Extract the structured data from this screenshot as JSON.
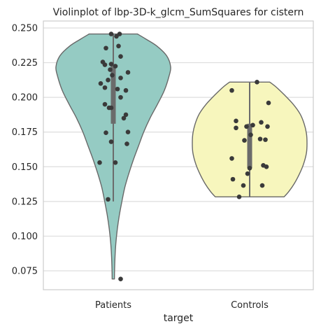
{
  "chart_data": {
    "type": "violin",
    "title": "Violinplot of lbp-3D-k_glcm_SumSquares for cistern",
    "xlabel": "target",
    "ylabel": "",
    "categories": [
      "Patients",
      "Controls"
    ],
    "ylim": [
      0.06,
      0.255
    ],
    "yticks": [
      0.075,
      0.1,
      0.125,
      0.15,
      0.175,
      0.2,
      0.225,
      0.25
    ],
    "ytick_labels": [
      "0.075",
      "0.100",
      "0.125",
      "0.150",
      "0.175",
      "0.200",
      "0.225",
      "0.250"
    ],
    "grid": true,
    "colors": {
      "Patients": "#95cbc3",
      "Controls": "#f7f6bd",
      "outline": "#686868",
      "points": "#3a3a3a",
      "box": "#6b6b6b"
    },
    "violins": [
      {
        "category": "Patients",
        "profile": [
          [
            0.0691,
            0.02
          ],
          [
            0.075,
            0.022
          ],
          [
            0.085,
            0.03
          ],
          [
            0.095,
            0.045
          ],
          [
            0.105,
            0.07
          ],
          [
            0.115,
            0.105
          ],
          [
            0.125,
            0.15
          ],
          [
            0.135,
            0.2
          ],
          [
            0.145,
            0.27
          ],
          [
            0.155,
            0.35
          ],
          [
            0.165,
            0.44
          ],
          [
            0.175,
            0.53
          ],
          [
            0.185,
            0.64
          ],
          [
            0.195,
            0.77
          ],
          [
            0.205,
            0.89
          ],
          [
            0.215,
            0.97
          ],
          [
            0.222,
            1.0
          ],
          [
            0.23,
            0.93
          ],
          [
            0.237,
            0.76
          ],
          [
            0.242,
            0.57
          ],
          [
            0.2457,
            0.42
          ]
        ],
        "box": {
          "q1": 0.181,
          "q3": 0.224,
          "whisker_low": 0.125,
          "whisker_high": 0.2457
        },
        "points": [
          [
            -0.02,
            0.2457
          ],
          [
            0.06,
            0.2457
          ],
          [
            0.03,
            0.244
          ],
          [
            0.05,
            0.237
          ],
          [
            -0.07,
            0.2355
          ],
          [
            0.07,
            0.2295
          ],
          [
            -0.1,
            0.2255
          ],
          [
            -0.08,
            0.2235
          ],
          [
            -0.02,
            0.224
          ],
          [
            0.02,
            0.2225
          ],
          [
            -0.03,
            0.22
          ],
          [
            0.14,
            0.218
          ],
          [
            -0.01,
            0.216
          ],
          [
            0.07,
            0.214
          ],
          [
            -0.05,
            0.2125
          ],
          [
            -0.12,
            0.21
          ],
          [
            -0.08,
            0.207
          ],
          [
            0.04,
            0.206
          ],
          [
            0.12,
            0.205
          ],
          [
            0.07,
            0.2
          ],
          [
            -0.08,
            0.195
          ],
          [
            -0.04,
            0.1925
          ],
          [
            -0.02,
            0.1925
          ],
          [
            0.12,
            0.1875
          ],
          [
            0.1,
            0.185
          ],
          [
            -0.07,
            0.1745
          ],
          [
            0.14,
            0.175
          ],
          [
            -0.02,
            0.168
          ],
          [
            0.13,
            0.1665
          ],
          [
            -0.13,
            0.153
          ],
          [
            0.02,
            0.153
          ],
          [
            -0.05,
            0.1265
          ],
          [
            0.07,
            0.0691
          ]
        ]
      },
      {
        "category": "Controls",
        "profile": [
          [
            0.1283,
            0.6
          ],
          [
            0.132,
            0.68
          ],
          [
            0.138,
            0.78
          ],
          [
            0.145,
            0.87
          ],
          [
            0.152,
            0.94
          ],
          [
            0.16,
            0.99
          ],
          [
            0.167,
            1.0
          ],
          [
            0.174,
            0.99
          ],
          [
            0.181,
            0.95
          ],
          [
            0.188,
            0.88
          ],
          [
            0.195,
            0.76
          ],
          [
            0.202,
            0.6
          ],
          [
            0.2075,
            0.46
          ],
          [
            0.211,
            0.35
          ]
        ],
        "box": {
          "q1": 0.149,
          "q3": 0.181,
          "whisker_low": 0.1283,
          "whisker_high": 0.211
        },
        "points": [
          [
            0.07,
            0.211
          ],
          [
            -0.17,
            0.205
          ],
          [
            0.18,
            0.196
          ],
          [
            -0.13,
            0.183
          ],
          [
            0.11,
            0.182
          ],
          [
            0.03,
            0.18
          ],
          [
            0.17,
            0.179
          ],
          [
            -0.03,
            0.179
          ],
          [
            -0.13,
            0.178
          ],
          [
            0.01,
            0.173
          ],
          [
            0.1,
            0.17
          ],
          [
            0.15,
            0.1695
          ],
          [
            -0.05,
            0.169
          ],
          [
            -0.17,
            0.156
          ],
          [
            0.13,
            0.151
          ],
          [
            0.16,
            0.15
          ],
          [
            0.0,
            0.149
          ],
          [
            -0.02,
            0.145
          ],
          [
            -0.16,
            0.141
          ],
          [
            -0.06,
            0.1365
          ],
          [
            0.12,
            0.1365
          ],
          [
            -0.1,
            0.1283
          ]
        ]
      }
    ]
  }
}
